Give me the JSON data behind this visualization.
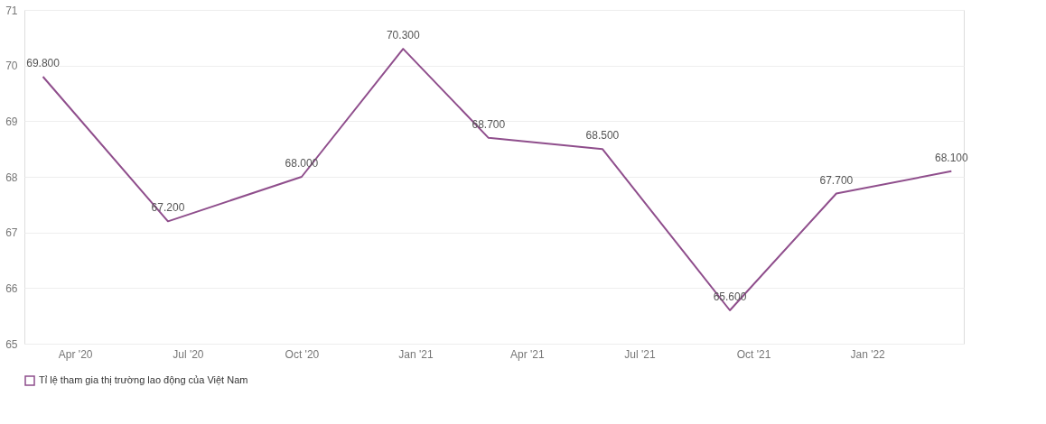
{
  "chart_data": {
    "type": "line",
    "x": [
      "2020-03-06",
      "2020-06-15",
      "2020-10-01",
      "2020-12-22",
      "2021-03-01",
      "2021-06-01",
      "2021-09-12",
      "2021-12-07",
      "2022-03-10"
    ],
    "series": [
      {
        "name": "Tỉ lệ tham gia thị trường lao động của Việt Nam",
        "color": "#7b2f78",
        "values": [
          69.8,
          67.2,
          68.0,
          70.3,
          68.7,
          68.5,
          65.6,
          67.7,
          68.1
        ],
        "value_labels": [
          "69.800",
          "67.200",
          "68.000",
          "70.300",
          "68.700",
          "68.500",
          "65.600",
          "67.700",
          "68.100"
        ]
      }
    ],
    "xlim": [
      "2020-02-20",
      "2022-03-20"
    ],
    "xticks": [
      {
        "value": "2020-04-01",
        "label": "Apr '20"
      },
      {
        "value": "2020-07-01",
        "label": "Jul '20"
      },
      {
        "value": "2020-10-01",
        "label": "Oct '20"
      },
      {
        "value": "2021-01-01",
        "label": "Jan '21"
      },
      {
        "value": "2021-04-01",
        "label": "Apr '21"
      },
      {
        "value": "2021-07-01",
        "label": "Jul '21"
      },
      {
        "value": "2021-10-01",
        "label": "Oct '21"
      },
      {
        "value": "2022-01-01",
        "label": "Jan '22"
      }
    ],
    "ylim": [
      65,
      71
    ],
    "yticks": [
      65,
      66,
      67,
      68,
      69,
      70,
      71
    ],
    "grid": "y",
    "legend": "bottom",
    "marker": "none",
    "line_style": "solid"
  }
}
